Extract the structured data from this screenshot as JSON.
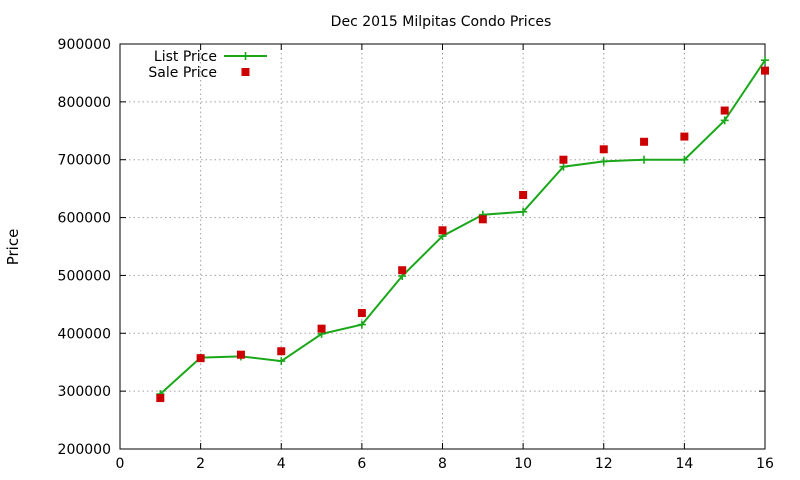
{
  "chart_data": {
    "type": "line",
    "title": "Dec 2015 Milpitas Condo Prices",
    "xlabel": "",
    "ylabel": "Price",
    "xlim": [
      0,
      16
    ],
    "ylim": [
      200000,
      900000
    ],
    "xticks": [
      0,
      2,
      4,
      6,
      8,
      10,
      12,
      14,
      16
    ],
    "yticks": [
      200000,
      300000,
      400000,
      500000,
      600000,
      700000,
      800000,
      900000
    ],
    "grid": true,
    "legend_position": "top-left",
    "series": [
      {
        "name": "List Price",
        "style": "line-with-plus-markers",
        "color": "#1aa81a",
        "x": [
          1,
          2,
          3,
          4,
          5,
          6,
          7,
          8,
          9,
          10,
          11,
          12,
          13,
          14,
          15,
          16
        ],
        "y": [
          295000,
          358000,
          360000,
          352000,
          399000,
          415000,
          499000,
          568000,
          605000,
          610000,
          688000,
          697000,
          700000,
          700000,
          768000,
          872000
        ]
      },
      {
        "name": "Sale Price",
        "style": "square-markers",
        "color": "#cc0000",
        "x": [
          1,
          2,
          3,
          4,
          5,
          6,
          7,
          8,
          9,
          10,
          11,
          12,
          13,
          14,
          15,
          16
        ],
        "y": [
          288000,
          357000,
          363000,
          369000,
          408000,
          435000,
          509000,
          578000,
          597000,
          639000,
          700000,
          718000,
          731000,
          740000,
          785000,
          854000
        ]
      }
    ]
  }
}
